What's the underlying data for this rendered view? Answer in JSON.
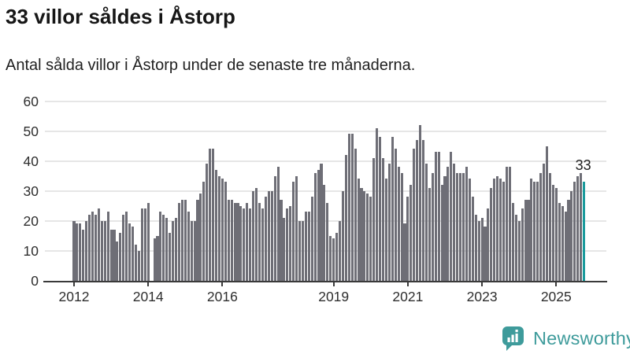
{
  "header": {
    "title": "33 villor såldes i Åstorp",
    "subtitle": "Antal sålda villor i Åstorp under de senaste tre månaderna."
  },
  "chart_data": {
    "type": "bar",
    "title": "33 villor såldes i Åstorp",
    "subtitle": "Antal sålda villor i Åstorp under de senaste tre månaderna.",
    "ylabel": "",
    "xlabel": "",
    "ylim": [
      0,
      60
    ],
    "y_ticks": [
      0,
      10,
      20,
      30,
      40,
      50,
      60
    ],
    "grid": "horizontal",
    "x_start": "2012-01",
    "x_ticks": [
      {
        "label": "2012",
        "month_index": 0
      },
      {
        "label": "2014",
        "month_index": 24
      },
      {
        "label": "2016",
        "month_index": 48
      },
      {
        "label": "2019",
        "month_index": 84
      },
      {
        "label": "2021",
        "month_index": 108
      },
      {
        "label": "2023",
        "month_index": 132
      },
      {
        "label": "2025",
        "month_index": 156
      }
    ],
    "values": [
      20,
      19,
      19,
      17,
      20,
      22,
      23,
      22,
      24,
      20,
      20,
      23,
      17,
      17,
      13,
      16,
      22,
      23,
      19,
      18,
      12,
      10,
      24,
      24,
      26,
      0,
      14,
      15,
      23,
      22,
      21,
      16,
      20,
      21,
      26,
      27,
      27,
      23,
      20,
      20,
      27,
      29,
      33,
      39,
      44,
      44,
      37,
      35,
      34,
      33,
      27,
      27,
      26,
      26,
      25,
      24,
      26,
      24,
      30,
      31,
      26,
      24,
      28,
      30,
      30,
      35,
      38,
      27,
      21,
      24,
      25,
      33,
      35,
      20,
      20,
      23,
      23,
      28,
      36,
      37,
      39,
      32,
      26,
      15,
      14,
      16,
      20,
      30,
      42,
      49,
      49,
      44,
      34,
      31,
      30,
      29,
      28,
      41,
      51,
      48,
      41,
      34,
      39,
      48,
      44,
      38,
      36,
      19,
      28,
      32,
      44,
      47,
      52,
      47,
      39,
      31,
      36,
      43,
      43,
      32,
      35,
      38,
      43,
      39,
      36,
      36,
      36,
      38,
      34,
      28,
      22,
      20,
      21,
      18,
      24,
      31,
      34,
      35,
      34,
      33,
      38,
      38,
      26,
      22,
      20,
      24,
      27,
      27,
      34,
      33,
      33,
      36,
      39,
      45,
      36,
      32,
      31,
      26,
      25,
      23,
      27,
      30,
      33,
      35,
      36,
      33
    ],
    "highlight_last_bar": true,
    "last_value_label": "33",
    "colors": {
      "bar": "#6e6e76",
      "highlight": "#1a9a9c",
      "grid": "#e6e6e6",
      "axis": "#3a3a3a",
      "tick_text": "#2e2e2e"
    }
  },
  "logo": {
    "text": "Newsworthy",
    "color": "#3e9b9b",
    "icon": "bar-chart-speech-bubble-icon"
  }
}
